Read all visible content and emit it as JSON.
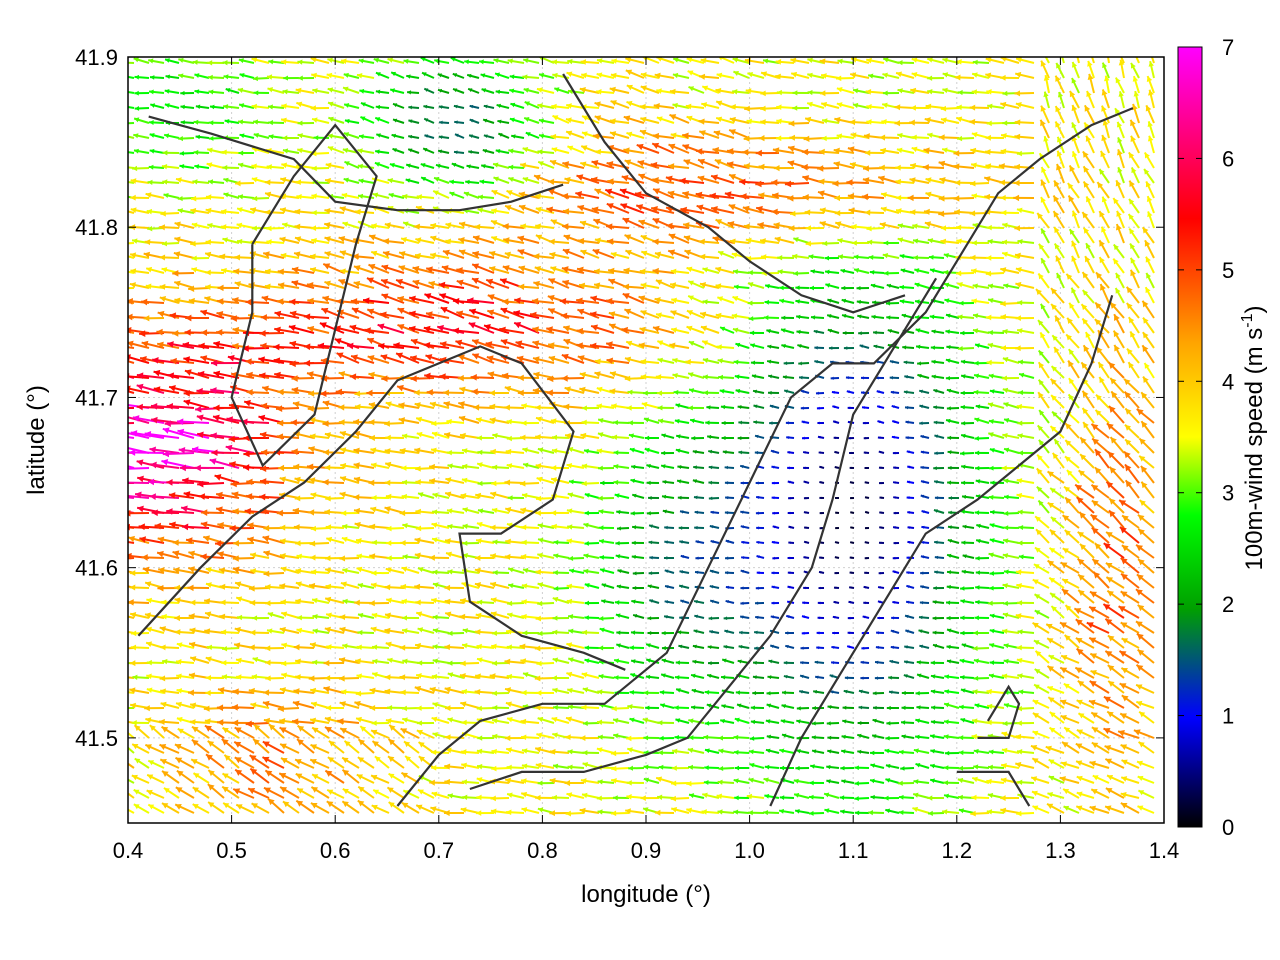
{
  "chart_data": {
    "type": "vector-field",
    "xlabel": "longitude (°)",
    "ylabel": "latitude (°)",
    "xlim": [
      0.4,
      1.4
    ],
    "ylim": [
      41.45,
      41.9
    ],
    "x_ticks": [
      "0.4",
      "0.5",
      "0.6",
      "0.7",
      "0.8",
      "0.9",
      "1.0",
      "1.1",
      "1.2",
      "1.3",
      "1.4"
    ],
    "y_ticks": [
      "41.5",
      "41.6",
      "41.7",
      "41.8",
      "41.9"
    ],
    "grid": true,
    "colorbar": {
      "label": "100m-wind speed (m s",
      "label_sup": "-1",
      "label_end": ")",
      "range": [
        0,
        7
      ],
      "ticks": [
        "0",
        "1",
        "2",
        "3",
        "4",
        "5",
        "6",
        "7"
      ],
      "colors": [
        "#000000",
        "#0000ff",
        "#00a000",
        "#00ff00",
        "#ffff00",
        "#ffa500",
        "#ff0000",
        "#ff00ff"
      ]
    },
    "field_note_keys": [
      "west-speed",
      "mid-speed",
      "east-speed"
    ],
    "representative_speeds": {
      "west_band": 6.8,
      "central_ridge": 4.5,
      "valley": 0.6,
      "east_slope": 4.2,
      "north_edge": 2.2
    },
    "contours": [
      [
        [
          0.42,
          41.865
        ],
        [
          0.48,
          41.855
        ],
        [
          0.56,
          41.84
        ],
        [
          0.6,
          41.815
        ],
        [
          0.66,
          41.81
        ],
        [
          0.72,
          41.81
        ],
        [
          0.77,
          41.815
        ],
        [
          0.82,
          41.825
        ]
      ],
      [
        [
          0.52,
          41.79
        ],
        [
          0.56,
          41.83
        ],
        [
          0.6,
          41.86
        ],
        [
          0.64,
          41.83
        ],
        [
          0.62,
          41.79
        ],
        [
          0.6,
          41.74
        ],
        [
          0.58,
          41.69
        ],
        [
          0.53,
          41.66
        ],
        [
          0.5,
          41.7
        ],
        [
          0.52,
          41.75
        ],
        [
          0.52,
          41.79
        ]
      ],
      [
        [
          0.41,
          41.56
        ],
        [
          0.47,
          41.6
        ],
        [
          0.52,
          41.63
        ],
        [
          0.57,
          41.65
        ],
        [
          0.62,
          41.68
        ],
        [
          0.66,
          41.71
        ],
        [
          0.7,
          41.72
        ],
        [
          0.74,
          41.73
        ],
        [
          0.78,
          41.72
        ],
        [
          0.83,
          41.68
        ],
        [
          0.81,
          41.64
        ],
        [
          0.76,
          41.62
        ],
        [
          0.72,
          41.62
        ],
        [
          0.73,
          41.58
        ],
        [
          0.78,
          41.56
        ],
        [
          0.84,
          41.55
        ],
        [
          0.88,
          41.54
        ]
      ],
      [
        [
          0.66,
          41.46
        ],
        [
          0.7,
          41.49
        ],
        [
          0.74,
          41.51
        ],
        [
          0.8,
          41.52
        ],
        [
          0.86,
          41.52
        ],
        [
          0.92,
          41.55
        ],
        [
          0.96,
          41.6
        ],
        [
          1.0,
          41.65
        ],
        [
          1.04,
          41.7
        ],
        [
          1.08,
          41.72
        ],
        [
          1.12,
          41.72
        ],
        [
          1.17,
          41.75
        ],
        [
          1.2,
          41.78
        ],
        [
          1.24,
          41.82
        ],
        [
          1.28,
          41.84
        ],
        [
          1.33,
          41.86
        ],
        [
          1.37,
          41.87
        ]
      ],
      [
        [
          0.73,
          41.47
        ],
        [
          0.78,
          41.48
        ],
        [
          0.84,
          41.48
        ],
        [
          0.9,
          41.49
        ],
        [
          0.94,
          41.5
        ],
        [
          0.98,
          41.53
        ],
        [
          1.02,
          41.56
        ],
        [
          1.06,
          41.6
        ],
        [
          1.08,
          41.64
        ],
        [
          1.1,
          41.69
        ],
        [
          1.13,
          41.72
        ],
        [
          1.16,
          41.75
        ],
        [
          1.18,
          41.77
        ]
      ],
      [
        [
          1.02,
          41.46
        ],
        [
          1.05,
          41.5
        ],
        [
          1.09,
          41.54
        ],
        [
          1.13,
          41.58
        ],
        [
          1.17,
          41.62
        ],
        [
          1.22,
          41.64
        ],
        [
          1.26,
          41.66
        ],
        [
          1.3,
          41.68
        ],
        [
          1.33,
          41.72
        ],
        [
          1.35,
          41.76
        ]
      ],
      [
        [
          0.82,
          41.89
        ],
        [
          0.86,
          41.85
        ],
        [
          0.9,
          41.82
        ],
        [
          0.96,
          41.8
        ],
        [
          1.0,
          41.78
        ],
        [
          1.05,
          41.76
        ],
        [
          1.1,
          41.75
        ],
        [
          1.15,
          41.76
        ]
      ],
      [
        [
          1.2,
          41.48
        ],
        [
          1.25,
          41.48
        ],
        [
          1.27,
          41.46
        ]
      ],
      [
        [
          1.23,
          41.51
        ],
        [
          1.25,
          41.53
        ],
        [
          1.26,
          41.52
        ],
        [
          1.25,
          41.5
        ],
        [
          1.22,
          41.5
        ]
      ]
    ]
  }
}
